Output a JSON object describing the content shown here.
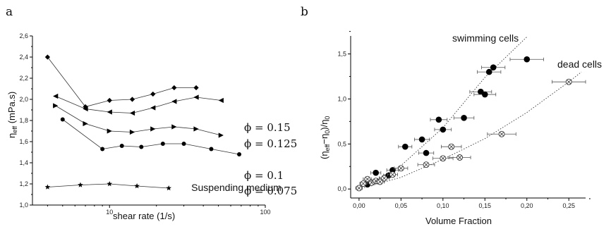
{
  "chart_data": [
    {
      "panel": "a",
      "type": "line",
      "xlabel": "shear rate (1/s)",
      "ylabel_base": "η",
      "ylabel_sub": "eff",
      "ylabel_unit": " (mPa.s)",
      "xscale": "log",
      "xlim": [
        3.2,
        100
      ],
      "ylim": [
        1.0,
        2.6
      ],
      "xticks": [
        {
          "v": 10,
          "label": "10"
        },
        {
          "v": 100,
          "label": "100"
        }
      ],
      "yticks": [
        "1,0",
        "1,2",
        "1,4",
        "1,6",
        "1,8",
        "2,0",
        "2,2",
        "2,4",
        "2,6"
      ],
      "series": [
        {
          "name": "ϕ = 0.15",
          "marker": "diamond",
          "x": [
            4,
            7,
            10,
            14,
            19,
            26,
            36
          ],
          "y": [
            2.4,
            1.93,
            1.99,
            2.0,
            2.05,
            2.11,
            2.11
          ]
        },
        {
          "name": "ϕ = 0.125",
          "marker": "tri-left",
          "x": [
            4.5,
            7,
            10,
            14,
            19,
            26,
            36,
            52
          ],
          "y": [
            2.03,
            1.91,
            1.88,
            1.87,
            1.92,
            1.98,
            2.02,
            1.99
          ]
        },
        {
          "name": "ϕ = 0.1",
          "marker": "tri-right",
          "x": [
            4.5,
            7,
            10,
            14,
            19,
            26,
            36,
            52
          ],
          "y": [
            1.94,
            1.77,
            1.7,
            1.69,
            1.72,
            1.74,
            1.72,
            1.66
          ]
        },
        {
          "name": "ϕ = 0.075",
          "marker": "circle",
          "x": [
            5,
            9,
            12,
            16,
            22,
            30,
            45,
            68
          ],
          "y": [
            1.81,
            1.53,
            1.56,
            1.55,
            1.58,
            1.58,
            1.53,
            1.48
          ]
        },
        {
          "name": "Suspending medium",
          "marker": "star",
          "x": [
            4,
            6.5,
            10,
            15,
            24
          ],
          "y": [
            1.17,
            1.19,
            1.2,
            1.18,
            1.16
          ]
        }
      ]
    },
    {
      "panel": "b",
      "type": "scatter",
      "xlabel": "Volume Fraction",
      "ylabel": "(η_eff−η_0)/η_0",
      "xlim": [
        -0.01,
        0.27
      ],
      "ylim": [
        -0.1,
        1.7
      ],
      "xticks": [
        "0,00",
        "0,05",
        "0,10",
        "0,15",
        "0,20",
        "0,25"
      ],
      "yticks": [
        "0,0",
        "0,5",
        "1,0",
        "1,5"
      ],
      "series": [
        {
          "name": "swimming cells",
          "marker": "filled-circle",
          "x": [
            0.01,
            0.02,
            0.035,
            0.04,
            0.055,
            0.075,
            0.08,
            0.095,
            0.1,
            0.125,
            0.145,
            0.15,
            0.155,
            0.16,
            0.2
          ],
          "y": [
            0.05,
            0.18,
            0.15,
            0.21,
            0.47,
            0.55,
            0.4,
            0.77,
            0.66,
            0.79,
            1.08,
            1.05,
            1.3,
            1.35,
            1.44
          ],
          "xerr": [
            0.005,
            0.006,
            0.006,
            0.007,
            0.008,
            0.009,
            0.009,
            0.01,
            0.01,
            0.012,
            0.013,
            0.013,
            0.014,
            0.014,
            0.02
          ]
        },
        {
          "name": "dead cells",
          "marker": "crossed-circle",
          "x": [
            0.0,
            0.005,
            0.01,
            0.015,
            0.02,
            0.025,
            0.03,
            0.04,
            0.05,
            0.08,
            0.1,
            0.11,
            0.12,
            0.17,
            0.25
          ],
          "y": [
            0.01,
            0.06,
            0.11,
            0.07,
            0.09,
            0.08,
            0.12,
            0.16,
            0.23,
            0.27,
            0.34,
            0.47,
            0.35,
            0.61,
            1.19
          ],
          "xerr": [
            0.004,
            0.004,
            0.005,
            0.005,
            0.005,
            0.005,
            0.006,
            0.006,
            0.008,
            0.01,
            0.012,
            0.012,
            0.013,
            0.017,
            0.02
          ]
        }
      ],
      "fits": [
        {
          "name": "swimming cells",
          "x": [
            0.0,
            0.05,
            0.1,
            0.15,
            0.2
          ],
          "y": [
            0.0,
            0.26,
            0.68,
            1.24,
            1.69
          ]
        },
        {
          "name": "dead cells",
          "x": [
            0.0,
            0.05,
            0.1,
            0.15,
            0.2,
            0.25,
            0.265
          ],
          "y": [
            0.0,
            0.13,
            0.33,
            0.56,
            0.85,
            1.19,
            1.3
          ]
        }
      ]
    }
  ]
}
